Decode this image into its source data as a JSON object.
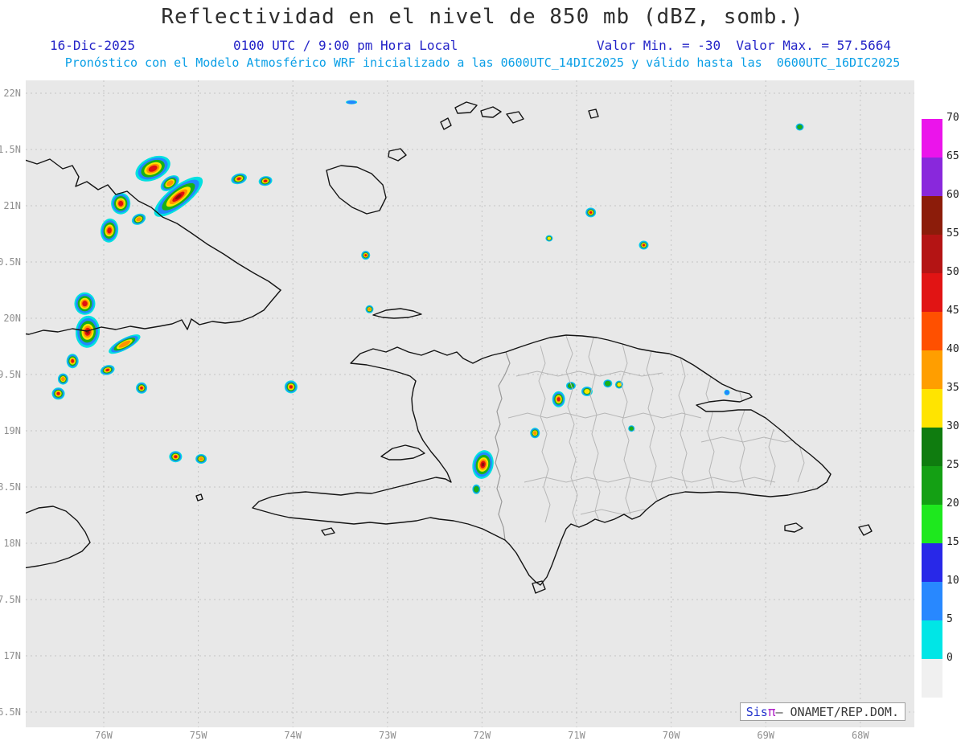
{
  "title": "Reflectividad en el nivel de 850 mb (dBZ, somb.)",
  "header": {
    "date": "16-Dic-2025",
    "local_time": "0100 UTC / 9:00 pm Hora Local",
    "min_max": "Valor Min. = -30  Valor Max. = 57.5664",
    "model_info": "Pronóstico con el Modelo Atmosférico WRF inicializado a las 0600UTC_14DIC2025 y válido hasta las  0600UTC_16DIC2025"
  },
  "attribution": {
    "sis": "Sis",
    "pi": "π",
    "rest": "— ONAMET/REP.DOM."
  },
  "colors": {
    "header_blue": "#2424c8",
    "model_cyan": "#0a9fe6",
    "map_background": "#e8e8e8",
    "coastline": "#141414",
    "province_border": "#b6b6b6"
  },
  "chart_data": {
    "type": "heatmap",
    "title": "Reflectividad en el nivel de 850 mb (dBZ, somb.)",
    "variable": "Reflectividad",
    "level": "850 mb",
    "units": "dBZ",
    "value_min": -30,
    "value_max": 57.5664,
    "grid": "dashed",
    "x_axis": {
      "lon_range_w": [
        76.83,
        67.43
      ],
      "ticks": [
        {
          "label": "76W",
          "lon": 76
        },
        {
          "label": "75W",
          "lon": 75
        },
        {
          "label": "74W",
          "lon": 74
        },
        {
          "label": "73W",
          "lon": 73
        },
        {
          "label": "72W",
          "lon": 72
        },
        {
          "label": "71W",
          "lon": 71
        },
        {
          "label": "70W",
          "lon": 70
        },
        {
          "label": "69W",
          "lon": 69
        },
        {
          "label": "68W",
          "lon": 68
        }
      ]
    },
    "y_axis": {
      "lat_range_n": [
        16.36,
        22.11
      ],
      "ticks": [
        {
          "label": "22N",
          "lat": 22
        },
        {
          "label": "1.5N",
          "lat": 21.5
        },
        {
          "label": "21N",
          "lat": 21
        },
        {
          "label": "0.5N",
          "lat": 20.5
        },
        {
          "label": "20N",
          "lat": 20
        },
        {
          "label": "9.5N",
          "lat": 19.5
        },
        {
          "label": "19N",
          "lat": 19
        },
        {
          "label": "8.5N",
          "lat": 18.5
        },
        {
          "label": "18N",
          "lat": 18
        },
        {
          "label": "7.5N",
          "lat": 17.5
        },
        {
          "label": "17N",
          "lat": 17
        },
        {
          "label": "6.5N",
          "lat": 16.5
        }
      ]
    },
    "colorbar": {
      "labels": [
        "70",
        "65",
        "60",
        "55",
        "50",
        "45",
        "40",
        "35",
        "30",
        "25",
        "20",
        "15",
        "10",
        "5",
        "0"
      ],
      "colors_top_to_bottom": [
        "#ffffff",
        "#eb14eb",
        "#8928dc",
        "#8c1c0a",
        "#b41414",
        "#e11414",
        "#ff5000",
        "#ff9e00",
        "#ffe400",
        "#0f7c0f",
        "#14a014",
        "#1ee81e",
        "#2828e8",
        "#2888ff",
        "#00e6e6",
        "#f0f0f0"
      ]
    },
    "cell_levels": [
      {
        "dbz": 0,
        "scale": 1.0,
        "color": "#00e0e0"
      },
      {
        "dbz": 8,
        "scale": 0.85,
        "color": "#2287ff"
      },
      {
        "dbz": 17,
        "scale": 0.68,
        "color": "#17b117"
      },
      {
        "dbz": 30,
        "scale": 0.5,
        "color": "#ffe400"
      },
      {
        "dbz": 38,
        "scale": 0.37,
        "color": "#ff9000"
      },
      {
        "dbz": 44,
        "scale": 0.25,
        "color": "#e01010"
      },
      {
        "dbz": 54,
        "scale": 0.13,
        "color": "#8c1408"
      }
    ],
    "cells": [
      {
        "lon": 75.21,
        "lat": 21.08,
        "dbz": 57,
        "w": 74,
        "h": 26,
        "rot": -38
      },
      {
        "lon": 75.48,
        "lat": 21.33,
        "dbz": 46,
        "w": 46,
        "h": 28,
        "rot": -25
      },
      {
        "lon": 75.3,
        "lat": 21.2,
        "dbz": 40,
        "w": 26,
        "h": 16,
        "rot": -35
      },
      {
        "lon": 75.82,
        "lat": 21.02,
        "dbz": 50,
        "w": 24,
        "h": 27,
        "rot": 0
      },
      {
        "lon": 75.94,
        "lat": 20.78,
        "dbz": 52,
        "w": 22,
        "h": 30,
        "rot": 8
      },
      {
        "lon": 75.63,
        "lat": 20.88,
        "dbz": 38,
        "w": 18,
        "h": 13,
        "rot": -25
      },
      {
        "lon": 74.57,
        "lat": 21.24,
        "dbz": 50,
        "w": 20,
        "h": 13,
        "rot": -15
      },
      {
        "lon": 74.29,
        "lat": 21.22,
        "dbz": 48,
        "w": 17,
        "h": 12,
        "rot": -10
      },
      {
        "lon": 76.2,
        "lat": 20.13,
        "dbz": 52,
        "w": 26,
        "h": 28,
        "rot": 0
      },
      {
        "lon": 76.17,
        "lat": 19.88,
        "dbz": 55,
        "w": 30,
        "h": 40,
        "rot": 5
      },
      {
        "lon": 76.33,
        "lat": 19.62,
        "dbz": 45,
        "w": 15,
        "h": 18,
        "rot": 0
      },
      {
        "lon": 76.43,
        "lat": 19.46,
        "dbz": 42,
        "w": 13,
        "h": 14,
        "rot": 0
      },
      {
        "lon": 76.48,
        "lat": 19.33,
        "dbz": 48,
        "w": 16,
        "h": 15,
        "rot": 0
      },
      {
        "lon": 75.78,
        "lat": 19.77,
        "dbz": 42,
        "w": 44,
        "h": 14,
        "rot": -28
      },
      {
        "lon": 75.96,
        "lat": 19.54,
        "dbz": 45,
        "w": 18,
        "h": 12,
        "rot": -15
      },
      {
        "lon": 75.6,
        "lat": 19.38,
        "dbz": 45,
        "w": 14,
        "h": 14,
        "rot": 0
      },
      {
        "lon": 75.24,
        "lat": 18.77,
        "dbz": 48,
        "w": 16,
        "h": 14,
        "rot": 0
      },
      {
        "lon": 74.97,
        "lat": 18.75,
        "dbz": 42,
        "w": 14,
        "h": 12,
        "rot": 0
      },
      {
        "lon": 74.02,
        "lat": 19.39,
        "dbz": 46,
        "w": 16,
        "h": 16,
        "rot": 0
      },
      {
        "lon": 71.99,
        "lat": 18.7,
        "dbz": 55,
        "w": 26,
        "h": 36,
        "rot": 12
      },
      {
        "lon": 72.06,
        "lat": 18.48,
        "dbz": 18,
        "w": 10,
        "h": 12,
        "rot": 0
      },
      {
        "lon": 71.19,
        "lat": 19.28,
        "dbz": 50,
        "w": 16,
        "h": 20,
        "rot": 0
      },
      {
        "lon": 71.06,
        "lat": 19.4,
        "dbz": 28,
        "w": 12,
        "h": 10,
        "rot": 0
      },
      {
        "lon": 70.89,
        "lat": 19.35,
        "dbz": 35,
        "w": 14,
        "h": 12,
        "rot": 0
      },
      {
        "lon": 70.67,
        "lat": 19.42,
        "dbz": 28,
        "w": 11,
        "h": 10,
        "rot": 0
      },
      {
        "lon": 70.55,
        "lat": 19.41,
        "dbz": 35,
        "w": 10,
        "h": 10,
        "rot": 0
      },
      {
        "lon": 71.44,
        "lat": 18.98,
        "dbz": 40,
        "w": 12,
        "h": 13,
        "rot": 0
      },
      {
        "lon": 70.85,
        "lat": 20.94,
        "dbz": 48,
        "w": 13,
        "h": 12,
        "rot": 0
      },
      {
        "lon": 70.29,
        "lat": 20.65,
        "dbz": 46,
        "w": 12,
        "h": 11,
        "rot": 0
      },
      {
        "lon": 71.29,
        "lat": 20.71,
        "dbz": 30,
        "w": 9,
        "h": 8,
        "rot": 0
      },
      {
        "lon": 73.23,
        "lat": 20.56,
        "dbz": 45,
        "w": 11,
        "h": 11,
        "rot": 0
      },
      {
        "lon": 73.19,
        "lat": 20.08,
        "dbz": 40,
        "w": 10,
        "h": 10,
        "rot": 0
      },
      {
        "lon": 68.64,
        "lat": 21.7,
        "dbz": 25,
        "w": 10,
        "h": 9,
        "rot": 0
      },
      {
        "lon": 73.38,
        "lat": 21.92,
        "dbz": 10,
        "w": 14,
        "h": 5,
        "rot": 0
      },
      {
        "lon": 70.42,
        "lat": 19.02,
        "dbz": 20,
        "w": 8,
        "h": 8,
        "rot": 0
      },
      {
        "lon": 69.41,
        "lat": 19.34,
        "dbz": 15,
        "w": 7,
        "h": 7,
        "rot": 0
      }
    ]
  }
}
